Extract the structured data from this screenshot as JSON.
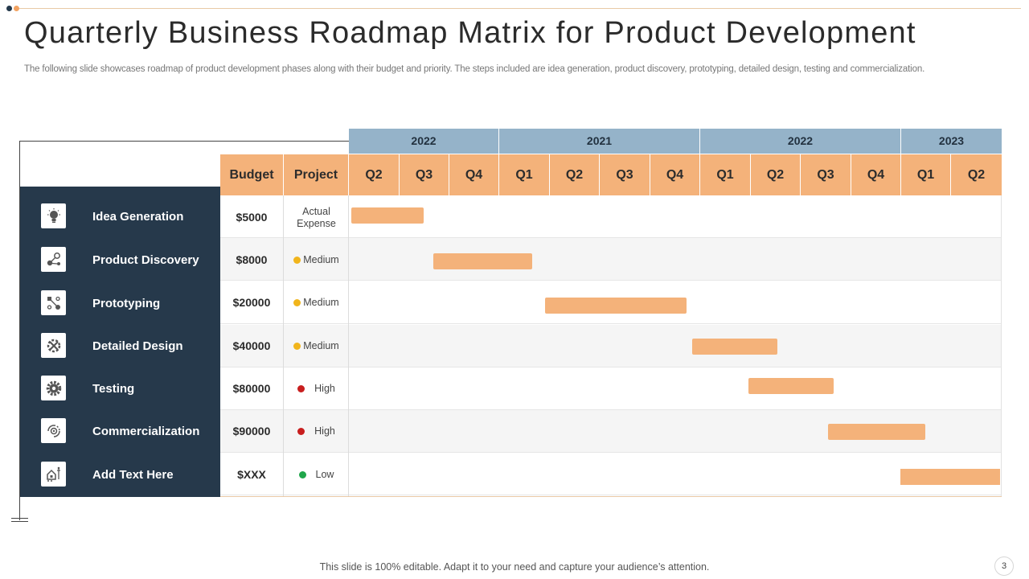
{
  "slide": {
    "title": "Quarterly Business Roadmap Matrix for Product Development",
    "subtitle": "The following slide showcases roadmap of product development phases along with their budget and priority. The steps included are idea generation, product discovery, prototyping, detailed design, testing and commercialization.",
    "footer": "This slide is 100% editable. Adapt it to your need and capture your audience’s attention.",
    "page_number": "3"
  },
  "colors": {
    "panel": "#26394b",
    "header_quarter": "#f4b27a",
    "header_year": "#95b3c9",
    "bar": "#f4b27a",
    "priority_medium": "#f1b51c",
    "priority_high": "#c81e1e",
    "priority_low": "#1fa64a"
  },
  "table": {
    "budget_header": "Budget",
    "project_header": "Project",
    "years": [
      "2022",
      "2021",
      "2022",
      "2023"
    ],
    "quarters": [
      "Q2",
      "Q3",
      "Q4",
      "Q1",
      "Q2",
      "Q3",
      "Q4",
      "Q1",
      "Q2",
      "Q3",
      "Q4",
      "Q1",
      "Q2"
    ],
    "rows": [
      {
        "phase": "Idea Generation",
        "icon": "lightbulb-icon",
        "budget": "$5000",
        "project": "Actual Expense",
        "priority": ""
      },
      {
        "phase": "Product Discovery",
        "icon": "network-icon",
        "budget": "$8000",
        "project": "Medium",
        "priority": "medium"
      },
      {
        "phase": "Prototyping",
        "icon": "workflow-icon",
        "budget": "$20000",
        "project": "Medium",
        "priority": "medium"
      },
      {
        "phase": "Detailed Design",
        "icon": "tools-gear-icon",
        "budget": "$40000",
        "project": "Medium",
        "priority": "medium"
      },
      {
        "phase": "Testing",
        "icon": "gear-icon",
        "budget": "$80000",
        "project": "High",
        "priority": "high"
      },
      {
        "phase": "Commercialization",
        "icon": "target-cycle-icon",
        "budget": "$90000",
        "project": "High",
        "priority": "high"
      },
      {
        "phase": "Add Text Here",
        "icon": "house-ladder-icon",
        "budget": "$XXX",
        "project": "Low",
        "priority": "low"
      }
    ]
  }
}
